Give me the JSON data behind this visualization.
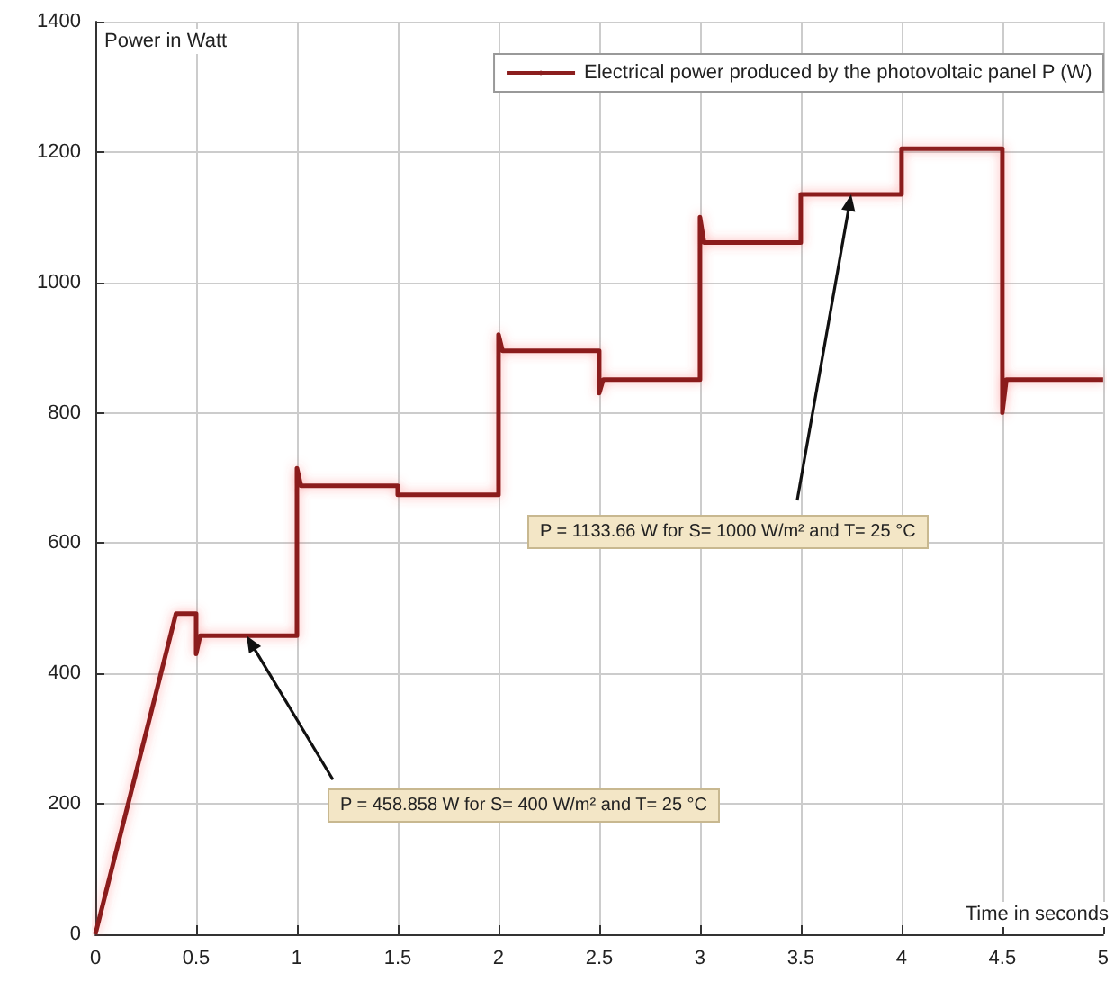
{
  "chart_data": {
    "type": "line",
    "ylabel": "Power in Watt",
    "xlabel": "Time in seconds",
    "xlim": [
      0,
      5
    ],
    "xticks": [
      0,
      0.5,
      1,
      1.5,
      2,
      2.5,
      3,
      3.5,
      4,
      4.5,
      5
    ],
    "ylim": [
      0,
      1400
    ],
    "yticks": [
      0,
      200,
      400,
      600,
      800,
      1000,
      1200,
      1400
    ],
    "grid": true,
    "legend": "top right",
    "marker": "none",
    "line_style": "solid",
    "series": [
      {
        "name": "Electrical power produced by the photovoltaic panel P (W)",
        "color": "#8b1e1e",
        "x": [
          0,
          0.4,
          0.5,
          0.5,
          0.52,
          1,
          1,
          1.02,
          1.5,
          1.5,
          2,
          2,
          2.02,
          2.5,
          2.5,
          2.52,
          3,
          3,
          3.02,
          3.5,
          3.5,
          4,
          4,
          4.5,
          4.5,
          4.52,
          5
        ],
        "values": [
          0,
          492,
          492,
          430,
          458,
          458,
          715,
          688,
          688,
          674,
          674,
          920,
          895,
          895,
          830,
          851,
          851,
          1100,
          1061,
          1061,
          1135,
          1135,
          1205,
          1205,
          800,
          851,
          851
        ]
      }
    ],
    "annotations": [
      {
        "text": "P = 458.858 W for S= 400 W/m² and T= 25 °C",
        "x": 0.75,
        "y": 458
      },
      {
        "text": "P = 1133.66 W for S= 1000 W/m² and T= 25 °C",
        "x": 3.75,
        "y": 1135
      }
    ]
  }
}
